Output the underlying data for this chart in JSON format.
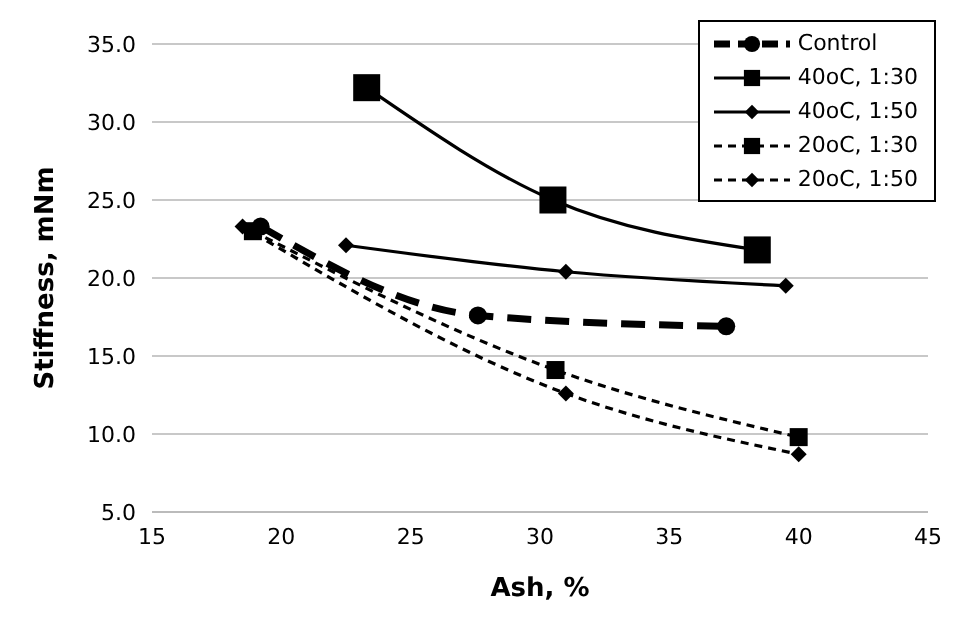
{
  "chart_data": {
    "type": "line",
    "xlabel": "Ash, %",
    "ylabel": "Stiffness, mNm",
    "xlim": [
      15,
      45
    ],
    "xticks": [
      15,
      20,
      25,
      30,
      35,
      40,
      45
    ],
    "ylim": [
      5,
      35
    ],
    "yticks": [
      {
        "value": 5,
        "label": "5.0"
      },
      {
        "value": 10,
        "label": "10.0"
      },
      {
        "value": 15,
        "label": "15.0"
      },
      {
        "value": 20,
        "label": "20.0"
      },
      {
        "value": 25,
        "label": "25.0"
      },
      {
        "value": 30,
        "label": "30.0"
      },
      {
        "value": 35,
        "label": "35.0"
      }
    ],
    "grid": "y",
    "legend": "top right",
    "series": [
      {
        "name": "Control",
        "color": "#000000",
        "marker": "circle",
        "line_style": "dashed",
        "x": [
          19.2,
          27.6,
          37.2
        ],
        "values": [
          23.3,
          17.6,
          16.9
        ]
      },
      {
        "name": "40oC, 1:30",
        "color": "#000000",
        "marker": "square",
        "line_style": "solid",
        "x": [
          23.3,
          30.5,
          38.4
        ],
        "values": [
          32.2,
          25.0,
          21.8
        ]
      },
      {
        "name": "40oC, 1:50",
        "color": "#000000",
        "marker": "diamond",
        "line_style": "solid",
        "x": [
          22.5,
          31.0,
          39.5
        ],
        "values": [
          22.1,
          20.4,
          19.5
        ]
      },
      {
        "name": "20oC, 1:30",
        "color": "#000000",
        "marker": "square",
        "line_style": "dashed",
        "x": [
          18.9,
          30.6,
          40.0
        ],
        "values": [
          23.0,
          14.1,
          9.8
        ]
      },
      {
        "name": "20oC, 1:50",
        "color": "#000000",
        "marker": "diamond",
        "line_style": "dashed",
        "x": [
          18.5,
          31.0,
          40.0
        ],
        "values": [
          23.3,
          12.6,
          8.7
        ]
      }
    ]
  }
}
